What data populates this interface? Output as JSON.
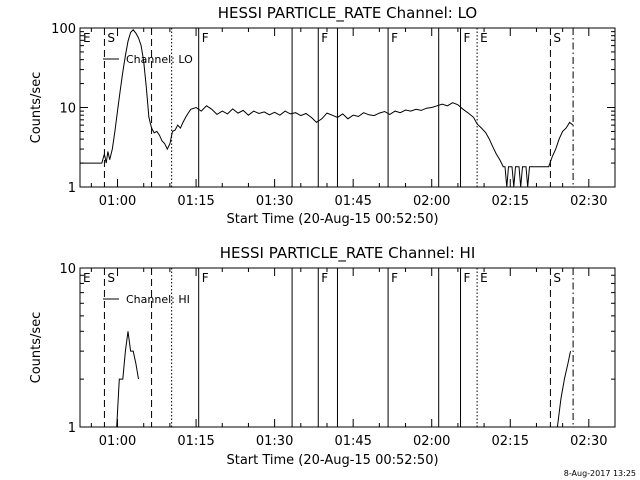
{
  "timestamp": "8-Aug-2017 13:25",
  "chart_data": [
    {
      "type": "line",
      "title": "HESSI PARTICLE_RATE Channel: LO",
      "xlabel": "Start Time (20-Aug-15 00:52:50)",
      "ylabel": "Counts/sec",
      "legend": "Channel: LO",
      "legend_position": "top-left",
      "y_scale": "log",
      "xlim": [
        "00:52:50",
        "02:35:00"
      ],
      "ylim": [
        1,
        100
      ],
      "x_ticks": [
        "01:00",
        "01:15",
        "01:30",
        "01:45",
        "02:00",
        "02:15",
        "02:30"
      ],
      "y_ticks": [
        "1",
        "10",
        "100"
      ],
      "series": [
        {
          "name": "Channel: LO",
          "points": [
            [
              "00:52:50",
              2
            ],
            [
              "00:57:00",
              2
            ],
            [
              "00:57:30",
              2.6
            ],
            [
              "00:57:50",
              2
            ],
            [
              "00:58:10",
              2.8
            ],
            [
              "00:58:30",
              2.2
            ],
            [
              "00:59:00",
              3
            ],
            [
              "00:59:30",
              5
            ],
            [
              "01:00:00",
              9
            ],
            [
              "01:00:30",
              16
            ],
            [
              "01:01:00",
              28
            ],
            [
              "01:01:30",
              45
            ],
            [
              "01:02:00",
              68
            ],
            [
              "01:02:30",
              88
            ],
            [
              "01:03:00",
              95
            ],
            [
              "01:03:30",
              86
            ],
            [
              "01:04:00",
              75
            ],
            [
              "01:04:30",
              60
            ],
            [
              "01:05:00",
              38
            ],
            [
              "01:05:30",
              18
            ],
            [
              "01:06:00",
              7.5
            ],
            [
              "01:06:30",
              5.5
            ],
            [
              "01:07:00",
              4.8
            ],
            [
              "01:07:30",
              5
            ],
            [
              "01:08:00",
              4.5
            ],
            [
              "01:08:30",
              3.8
            ],
            [
              "01:09:00",
              3.5
            ],
            [
              "01:09:30",
              3
            ],
            [
              "01:10:00",
              3.5
            ],
            [
              "01:10:30",
              5
            ],
            [
              "01:11:00",
              5.2
            ],
            [
              "01:11:30",
              6
            ],
            [
              "01:12:00",
              5.5
            ],
            [
              "01:12:30",
              6.5
            ],
            [
              "01:13:00",
              7.5
            ],
            [
              "01:13:30",
              8.5
            ],
            [
              "01:14:00",
              9.5
            ],
            [
              "01:15:00",
              10
            ],
            [
              "01:16:00",
              9
            ],
            [
              "01:17:00",
              10.5
            ],
            [
              "01:18:00",
              9.5
            ],
            [
              "01:19:00",
              8.2
            ],
            [
              "01:20:00",
              9
            ],
            [
              "01:21:00",
              8.3
            ],
            [
              "01:22:00",
              9.6
            ],
            [
              "01:23:00",
              8.5
            ],
            [
              "01:24:00",
              9.2
            ],
            [
              "01:25:00",
              8
            ],
            [
              "01:26:00",
              9
            ],
            [
              "01:27:00",
              8.4
            ],
            [
              "01:28:00",
              8.8
            ],
            [
              "01:29:00",
              8.1
            ],
            [
              "01:30:00",
              8.7
            ],
            [
              "01:31:00",
              8
            ],
            [
              "01:32:00",
              9
            ],
            [
              "01:33:00",
              8.3
            ],
            [
              "01:34:00",
              8.6
            ],
            [
              "01:35:00",
              7.9
            ],
            [
              "01:36:00",
              8.4
            ],
            [
              "01:37:00",
              7.5
            ],
            [
              "01:38:00",
              6.5
            ],
            [
              "01:39:00",
              7.2
            ],
            [
              "01:40:00",
              8.5
            ],
            [
              "01:41:00",
              8
            ],
            [
              "01:42:00",
              7.5
            ],
            [
              "01:43:00",
              8.3
            ],
            [
              "01:44:00",
              7.2
            ],
            [
              "01:45:00",
              8
            ],
            [
              "01:46:00",
              7.7
            ],
            [
              "01:47:00",
              8.6
            ],
            [
              "01:48:00",
              8.1
            ],
            [
              "01:49:00",
              7.9
            ],
            [
              "01:50:00",
              8.5
            ],
            [
              "01:51:00",
              8.9
            ],
            [
              "01:52:00",
              8.2
            ],
            [
              "01:53:00",
              9
            ],
            [
              "01:54:00",
              8.6
            ],
            [
              "01:55:00",
              9.3
            ],
            [
              "01:56:00",
              9
            ],
            [
              "01:57:00",
              9.5
            ],
            [
              "01:58:00",
              9.2
            ],
            [
              "01:59:00",
              9.8
            ],
            [
              "02:00:00",
              10
            ],
            [
              "02:01:00",
              10.5
            ],
            [
              "02:02:00",
              11
            ],
            [
              "02:03:00",
              10.5
            ],
            [
              "02:04:00",
              11.5
            ],
            [
              "02:05:00",
              10.8
            ],
            [
              "02:06:00",
              9.5
            ],
            [
              "02:07:00",
              8.5
            ],
            [
              "02:08:00",
              7.5
            ],
            [
              "02:08:40",
              6.2
            ],
            [
              "02:09:30",
              5.5
            ],
            [
              "02:10:20",
              4.8
            ],
            [
              "02:11:00",
              4
            ],
            [
              "02:11:40",
              3.2
            ],
            [
              "02:12:20",
              2.6
            ],
            [
              "02:13:00",
              2.2
            ],
            [
              "02:13:40",
              1.8
            ],
            [
              "02:14:00",
              1.8
            ],
            [
              "02:14:20",
              1
            ],
            [
              "02:14:40",
              1.8
            ],
            [
              "02:15:20",
              1.8
            ],
            [
              "02:15:40",
              1
            ],
            [
              "02:16:00",
              1.8
            ],
            [
              "02:16:40",
              1.8
            ],
            [
              "02:17:00",
              1
            ],
            [
              "02:17:20",
              1.8
            ],
            [
              "02:18:00",
              1.8
            ],
            [
              "02:18:20",
              1
            ],
            [
              "02:18:40",
              1.8
            ],
            [
              "02:20:00",
              1.8
            ],
            [
              "02:21:00",
              1.8
            ],
            [
              "02:21:40",
              1.8
            ],
            [
              "02:22:20",
              1.8
            ],
            [
              "02:23:00",
              2.4
            ],
            [
              "02:23:40",
              3
            ],
            [
              "02:24:20",
              4
            ],
            [
              "02:25:00",
              5
            ],
            [
              "02:25:40",
              5.5
            ],
            [
              "02:26:20",
              6.5
            ],
            [
              "02:27:00",
              6
            ]
          ]
        }
      ],
      "event_markers": [
        {
          "label": "E",
          "time": "00:52:50",
          "style": "solid"
        },
        {
          "label": "S",
          "time": "00:57:30",
          "style": "dashed"
        },
        {
          "label": "",
          "time": "01:06:30",
          "style": "dashed"
        },
        {
          "label": "",
          "time": "01:10:20",
          "style": "dotted"
        },
        {
          "label": "F",
          "time": "01:15:30",
          "style": "solid"
        },
        {
          "label": "",
          "time": "01:33:20",
          "style": "solid"
        },
        {
          "label": "F",
          "time": "01:38:20",
          "style": "solid"
        },
        {
          "label": "",
          "time": "01:42:00",
          "style": "solid"
        },
        {
          "label": "F",
          "time": "01:51:40",
          "style": "solid"
        },
        {
          "label": "",
          "time": "02:01:20",
          "style": "solid"
        },
        {
          "label": "F",
          "time": "02:05:30",
          "style": "solid"
        },
        {
          "label": "E",
          "time": "02:08:40",
          "style": "dotted"
        },
        {
          "label": "S",
          "time": "02:22:40",
          "style": "dashed"
        },
        {
          "label": "",
          "time": "02:27:00",
          "style": "dashdot"
        }
      ]
    },
    {
      "type": "line",
      "title": "HESSI PARTICLE_RATE Channel: HI",
      "xlabel": "Start Time (20-Aug-15 00:52:50)",
      "ylabel": "Counts/sec",
      "legend": "Channel: HI",
      "legend_position": "top-left",
      "y_scale": "log",
      "xlim": [
        "00:52:50",
        "02:35:00"
      ],
      "ylim": [
        1,
        10
      ],
      "x_ticks": [
        "01:00",
        "01:15",
        "01:30",
        "01:45",
        "02:00",
        "02:15",
        "02:30"
      ],
      "y_ticks": [
        "1",
        "10"
      ],
      "series": [
        {
          "name": "Channel: HI",
          "segments": [
            [
              [
                "00:59:20",
                1
              ],
              [
                "00:59:50",
                1
              ],
              [
                "01:00:20",
                2
              ],
              [
                "01:01:00",
                2
              ],
              [
                "01:01:30",
                3
              ],
              [
                "01:02:00",
                4
              ],
              [
                "01:02:30",
                3
              ],
              [
                "01:03:00",
                3
              ],
              [
                "01:03:30",
                2.5
              ],
              [
                "01:04:00",
                2
              ]
            ],
            [
              [
                "02:24:00",
                1
              ],
              [
                "02:24:40",
                1.5
              ],
              [
                "02:25:20",
                2
              ],
              [
                "02:26:00",
                2.5
              ],
              [
                "02:26:30",
                3
              ]
            ]
          ]
        }
      ],
      "event_markers": [
        {
          "label": "E",
          "time": "00:52:50",
          "style": "solid"
        },
        {
          "label": "S",
          "time": "00:57:30",
          "style": "dashed"
        },
        {
          "label": "",
          "time": "01:06:30",
          "style": "dashed"
        },
        {
          "label": "",
          "time": "01:10:20",
          "style": "dotted"
        },
        {
          "label": "F",
          "time": "01:15:30",
          "style": "solid"
        },
        {
          "label": "",
          "time": "01:33:20",
          "style": "solid"
        },
        {
          "label": "F",
          "time": "01:38:20",
          "style": "solid"
        },
        {
          "label": "",
          "time": "01:42:00",
          "style": "solid"
        },
        {
          "label": "F",
          "time": "01:51:40",
          "style": "solid"
        },
        {
          "label": "",
          "time": "02:01:20",
          "style": "solid"
        },
        {
          "label": "F",
          "time": "02:05:30",
          "style": "solid"
        },
        {
          "label": "E",
          "time": "02:08:40",
          "style": "dotted"
        },
        {
          "label": "S",
          "time": "02:22:40",
          "style": "dashed"
        },
        {
          "label": "",
          "time": "02:27:00",
          "style": "dashdot"
        }
      ]
    }
  ]
}
